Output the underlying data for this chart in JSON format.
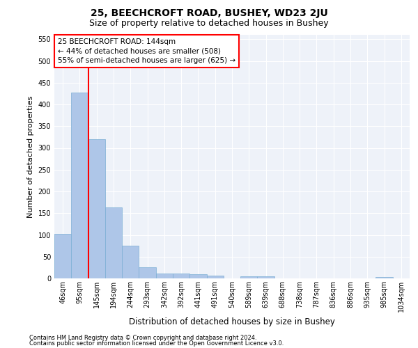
{
  "title1": "25, BEECHCROFT ROAD, BUSHEY, WD23 2JU",
  "title2": "Size of property relative to detached houses in Bushey",
  "xlabel": "Distribution of detached houses by size in Bushey",
  "ylabel": "Number of detached properties",
  "footer1": "Contains HM Land Registry data © Crown copyright and database right 2024.",
  "footer2": "Contains public sector information licensed under the Open Government Licence v3.0.",
  "categories": [
    "46sqm",
    "95sqm",
    "145sqm",
    "194sqm",
    "244sqm",
    "293sqm",
    "342sqm",
    "392sqm",
    "441sqm",
    "491sqm",
    "540sqm",
    "589sqm",
    "639sqm",
    "688sqm",
    "738sqm",
    "787sqm",
    "836sqm",
    "886sqm",
    "935sqm",
    "985sqm",
    "1034sqm"
  ],
  "values": [
    103,
    428,
    320,
    163,
    75,
    25,
    11,
    11,
    10,
    6,
    0,
    5,
    5,
    0,
    0,
    0,
    0,
    0,
    0,
    4,
    0
  ],
  "bar_color": "#aec6e8",
  "bar_edge_color": "#7aaed4",
  "red_line_index": 2,
  "annotation_text": "25 BEECHCROFT ROAD: 144sqm\n← 44% of detached houses are smaller (508)\n55% of semi-detached houses are larger (625) →",
  "ylim": [
    0,
    560
  ],
  "yticks": [
    0,
    50,
    100,
    150,
    200,
    250,
    300,
    350,
    400,
    450,
    500,
    550
  ],
  "bg_color": "#eef2f9",
  "grid_color": "#ffffff",
  "title1_fontsize": 10,
  "title2_fontsize": 9,
  "annotation_fontsize": 7.5,
  "tick_fontsize": 7,
  "ylabel_fontsize": 8,
  "xlabel_fontsize": 8.5
}
